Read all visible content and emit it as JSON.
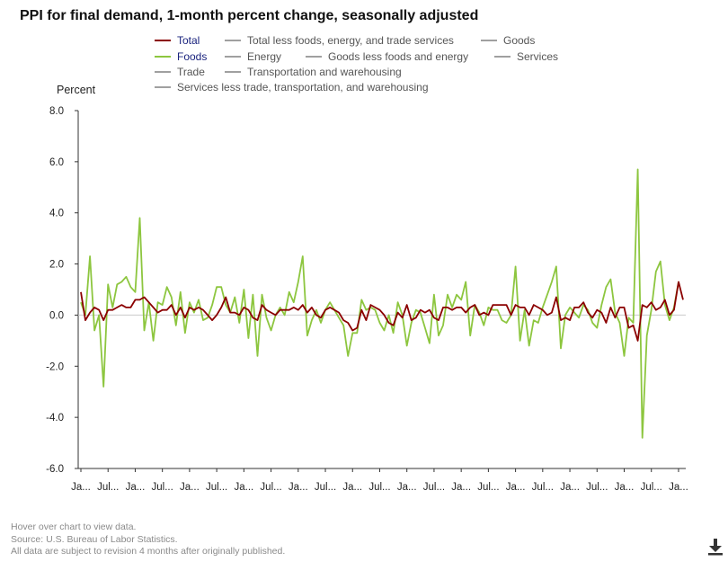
{
  "title": "PPI for final demand, 1-month percent change, seasonally adjusted",
  "legend": [
    {
      "label": "Total",
      "color": "#8b0000",
      "active": true
    },
    {
      "label": "Total less foods, energy, and trade services",
      "color": "#a0a0a0",
      "active": false
    },
    {
      "label": "Goods",
      "color": "#a0a0a0",
      "active": false
    },
    {
      "label": "Foods",
      "color": "#8dc63f",
      "active": true
    },
    {
      "label": "Energy",
      "color": "#a0a0a0",
      "active": false
    },
    {
      "label": "Goods less foods and energy",
      "color": "#a0a0a0",
      "active": false
    },
    {
      "label": "Services",
      "color": "#a0a0a0",
      "active": false
    },
    {
      "label": "Trade",
      "color": "#a0a0a0",
      "active": false
    },
    {
      "label": "Transportation and warehousing",
      "color": "#a0a0a0",
      "active": false
    },
    {
      "label": "Services less trade, transportation, and warehousing",
      "color": "#a0a0a0",
      "active": false
    }
  ],
  "footer": {
    "hint": "Hover over chart to view data.",
    "source": "Source: U.S. Bureau of Labor Statistics.",
    "note": "All data are subject to revision 4 months after originally published."
  },
  "download_icon": "download-icon",
  "chart_data": {
    "type": "line",
    "ylabel": "Percent",
    "ylim": [
      -6,
      8
    ],
    "yticks": [
      "8.0",
      "6.0",
      "4.0",
      "2.0",
      "0.0",
      "-2.0",
      "-4.0",
      "-6.0"
    ],
    "ytick_values": [
      8,
      6,
      4,
      2,
      0,
      -2,
      -4,
      -6
    ],
    "xtick_labels": [
      "Ja...",
      "Jul...",
      "Ja...",
      "Jul...",
      "Ja...",
      "Jul...",
      "Ja...",
      "Jul...",
      "Ja...",
      "Jul...",
      "Ja...",
      "Jul...",
      "Ja...",
      "Jul...",
      "Ja...",
      "Jul...",
      "Ja...",
      "Jul...",
      "Ja...",
      "Jul...",
      "Ja...",
      "Jul...",
      "Ja..."
    ],
    "grid": false,
    "zero_line": true,
    "series": [
      {
        "name": "Total",
        "color": "#8b0000",
        "values": [
          0.9,
          -0.2,
          0.1,
          0.3,
          0.2,
          -0.2,
          0.2,
          0.2,
          0.3,
          0.4,
          0.3,
          0.3,
          0.6,
          0.6,
          0.7,
          0.5,
          0.3,
          0.1,
          0.2,
          0.2,
          0.4,
          0.0,
          0.3,
          -0.1,
          0.3,
          0.2,
          0.3,
          0.2,
          0.0,
          -0.2,
          0.0,
          0.3,
          0.7,
          0.1,
          0.1,
          0.0,
          0.3,
          0.2,
          -0.1,
          -0.2,
          0.4,
          0.2,
          0.1,
          0.0,
          0.2,
          0.2,
          0.2,
          0.3,
          0.2,
          0.4,
          0.1,
          0.3,
          0.0,
          -0.1,
          0.2,
          0.3,
          0.2,
          0.1,
          -0.2,
          -0.3,
          -0.6,
          -0.5,
          0.2,
          -0.2,
          0.4,
          0.3,
          0.2,
          0.0,
          -0.3,
          -0.4,
          0.1,
          -0.1,
          0.4,
          -0.2,
          -0.1,
          0.2,
          0.1,
          0.2,
          -0.1,
          -0.2,
          0.3,
          0.3,
          0.2,
          0.3,
          0.3,
          0.1,
          0.3,
          0.4,
          0.0,
          0.1,
          0.0,
          0.4,
          0.4,
          0.4,
          0.4,
          0.0,
          0.4,
          0.3,
          0.3,
          0.0,
          0.4,
          0.3,
          0.2,
          0.0,
          0.1,
          0.7,
          -0.2,
          -0.1,
          -0.2,
          0.3,
          0.3,
          0.5,
          0.1,
          -0.1,
          0.2,
          0.1,
          -0.3,
          0.3,
          -0.1,
          0.3,
          0.3,
          -0.5,
          -0.4,
          -1.0,
          0.4,
          0.3,
          0.5,
          0.2,
          0.3,
          0.6,
          0.0,
          0.2,
          1.3,
          0.6
        ]
      },
      {
        "name": "Foods",
        "color": "#8dc63f",
        "values": [
          0.5,
          0.0,
          2.3,
          -0.6,
          0.0,
          -2.8,
          1.2,
          0.3,
          1.2,
          1.3,
          1.5,
          1.1,
          0.9,
          3.8,
          -0.6,
          0.5,
          -1.0,
          0.5,
          0.4,
          1.1,
          0.7,
          -0.4,
          0.9,
          -0.7,
          0.5,
          0.1,
          0.6,
          -0.2,
          -0.1,
          0.4,
          1.1,
          1.1,
          0.4,
          0.1,
          0.7,
          -0.3,
          1.0,
          -0.9,
          0.8,
          -1.6,
          0.8,
          -0.1,
          -0.6,
          0.0,
          0.3,
          0.0,
          0.9,
          0.5,
          1.3,
          2.3,
          -0.8,
          -0.2,
          0.2,
          -0.3,
          0.2,
          0.5,
          0.2,
          -0.1,
          -0.4,
          -1.6,
          -0.7,
          -0.7,
          0.6,
          0.2,
          0.3,
          0.2,
          -0.3,
          -0.6,
          0.0,
          -0.7,
          0.5,
          0.0,
          -1.2,
          -0.3,
          0.2,
          0.1,
          -0.5,
          -1.1,
          0.8,
          -0.8,
          -0.4,
          0.8,
          0.3,
          0.8,
          0.6,
          1.3,
          -0.8,
          0.4,
          0.1,
          -0.4,
          0.3,
          0.2,
          0.2,
          -0.2,
          -0.3,
          0.0,
          1.9,
          -1.0,
          0.2,
          -1.2,
          -0.2,
          -0.3,
          0.3,
          0.8,
          1.3,
          1.9,
          -1.3,
          0.0,
          0.3,
          0.1,
          -0.1,
          0.4,
          0.2,
          -0.3,
          -0.5,
          0.4,
          1.1,
          1.4,
          0.1,
          -0.3,
          -1.6,
          -0.1,
          -0.3,
          5.7,
          -4.8,
          -0.8,
          0.2,
          1.7,
          2.1,
          0.4,
          -0.2,
          0.3,
          1.3
        ]
      }
    ]
  }
}
